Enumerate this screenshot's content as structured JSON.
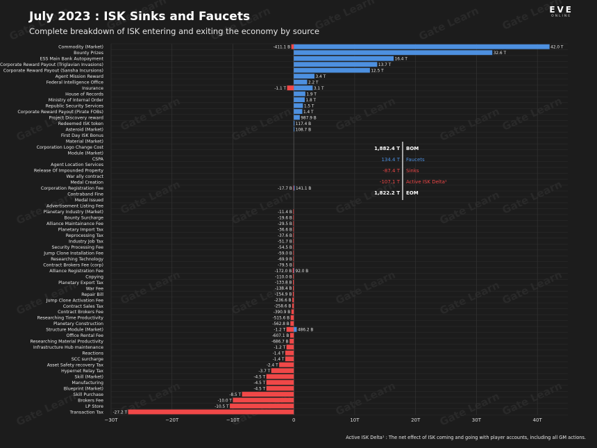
{
  "header": {
    "title": "July 2023 : ISK Sinks and Faucets",
    "subtitle": "Complete breakdown of ISK entering and exiting the economy by source",
    "brand": "EVE",
    "brand_sub": "ONLINE"
  },
  "watermark": "Gate Learn",
  "footnote": "Active ISK Delta¹ : The net effect of ISK coming and going with player accounts, including all GM actions.",
  "colors": {
    "faucet": "#4d90e0",
    "sink": "#f04848",
    "background": "#1c1c1c",
    "grid": "#2b2b2b"
  },
  "summary": [
    {
      "value": "1,882.4 T",
      "label": "BOM",
      "color": "#ffffff",
      "bold": true
    },
    {
      "value": "134.4 T",
      "label": "Faucets",
      "color": "#4d90e0",
      "bold": false
    },
    {
      "value": "-87.4 T",
      "label": "Sinks",
      "color": "#f04848",
      "bold": false
    },
    {
      "value": "-107.1 T",
      "label": "Active ISK Delta¹",
      "color": "#f04848",
      "bold": false
    },
    {
      "value": "1,822.2 T",
      "label": "EOM",
      "color": "#ffffff",
      "bold": true
    }
  ],
  "chart_data": {
    "type": "bar",
    "orientation": "horizontal",
    "xlim": [
      -30,
      45
    ],
    "xticks": [
      -30,
      -20,
      -10,
      0,
      10,
      20,
      30,
      40
    ],
    "xtick_labels": [
      "−30T",
      "−20T",
      "−10T",
      "0",
      "10T",
      "20T",
      "30T",
      "40T"
    ],
    "grid": true,
    "categories": [
      {
        "name": "Commodity (Market)",
        "faucet": 42.0,
        "faucet_label": "42.0 T",
        "sink": -0.4111,
        "sink_label": "-411.1 B"
      },
      {
        "name": "Bounty Prizes",
        "faucet": 32.6,
        "faucet_label": "32.6 T"
      },
      {
        "name": "ESS Main Bank Autopayment",
        "faucet": 16.4,
        "faucet_label": "16.4 T"
      },
      {
        "name": "Corporate Reward Payout (Triglavian Invasions)",
        "faucet": 13.7,
        "faucet_label": "13.7 T"
      },
      {
        "name": "Corporate Reward Payout (Sansha Incursions)",
        "faucet": 12.5,
        "faucet_label": "12.5 T"
      },
      {
        "name": "Agent Mission Reward",
        "faucet": 3.4,
        "faucet_label": "3.4 T"
      },
      {
        "name": "Federal Intelligence Office",
        "faucet": 2.2,
        "faucet_label": "2.2 T"
      },
      {
        "name": "Insurance",
        "faucet": 3.1,
        "faucet_label": "3.1 T",
        "sink": -1.1,
        "sink_label": "-1.1 T"
      },
      {
        "name": "House of Records",
        "faucet": 1.9,
        "faucet_label": "1.9 T"
      },
      {
        "name": "Ministry of Internal Order",
        "faucet": 1.8,
        "faucet_label": "1.8 T"
      },
      {
        "name": "Republic Security Services",
        "faucet": 1.5,
        "faucet_label": "1.5 T"
      },
      {
        "name": "Corporate Reward Payout (Pirate FOBs)",
        "faucet": 1.4,
        "faucet_label": "1.4 T"
      },
      {
        "name": "Project Discovery reward",
        "faucet": 0.9879,
        "faucet_label": "987.9 B"
      },
      {
        "name": "Redeemed ISK token",
        "faucet": 0.1174,
        "faucet_label": "117.4 B"
      },
      {
        "name": "Asteroid (Market)",
        "faucet": 0.1087,
        "faucet_label": "108.7 B"
      },
      {
        "name": "First Day ISK Bonus"
      },
      {
        "name": "Material (Market)"
      },
      {
        "name": "Corporation Logo Change Cost"
      },
      {
        "name": "Module (Market)"
      },
      {
        "name": "CSPA"
      },
      {
        "name": "Agent Location Services"
      },
      {
        "name": "Release Of Impounded Property"
      },
      {
        "name": "War ally contract"
      },
      {
        "name": "Medal Creation"
      },
      {
        "name": "Corporation Registration Fee",
        "faucet": 0.1411,
        "faucet_label": "141.1 B",
        "sink": -0.0177,
        "sink_label": "-17.7 B"
      },
      {
        "name": "Contraband Fine"
      },
      {
        "name": "Medal Issued"
      },
      {
        "name": "Advertisement Listing Fee"
      },
      {
        "name": "Planetary Industry (Market)",
        "sink": -0.0114,
        "sink_label": "-11.4 B"
      },
      {
        "name": "Bounty Surcharge",
        "sink": -0.0196,
        "sink_label": "-19.6 B"
      },
      {
        "name": "Alliance Maintainance Fee",
        "sink": -0.0295,
        "sink_label": "-29.5 B"
      },
      {
        "name": "Planetary Import Tax",
        "sink": -0.0366,
        "sink_label": "-36.6 B"
      },
      {
        "name": "Reprocessing Tax",
        "sink": -0.0376,
        "sink_label": "-37.6 B"
      },
      {
        "name": "Industry Job Tax",
        "sink": -0.0517,
        "sink_label": "-51.7 B"
      },
      {
        "name": "Security Processing Fee",
        "sink": -0.0545,
        "sink_label": "-54.5 B"
      },
      {
        "name": "Jump Clone Installation Fee",
        "sink": -0.059,
        "sink_label": "-59.0 B"
      },
      {
        "name": "Researching Technology",
        "sink": -0.0699,
        "sink_label": "-69.9 B"
      },
      {
        "name": "Contract Brokers Fee (corp)",
        "sink": -0.0795,
        "sink_label": "-79.5 B"
      },
      {
        "name": "Alliance Registration Fee",
        "faucet": 0.092,
        "faucet_label": "92.0 B",
        "sink": -0.172,
        "sink_label": "-172.0 B"
      },
      {
        "name": "Copying",
        "sink": -0.11,
        "sink_label": "-110.0 B"
      },
      {
        "name": "Planetary Export Tax",
        "sink": -0.1338,
        "sink_label": "-133.8 B"
      },
      {
        "name": "War Fee",
        "sink": -0.1384,
        "sink_label": "-138.4 B"
      },
      {
        "name": "Repair Bill",
        "sink": -0.1549,
        "sink_label": "-154.9 B"
      },
      {
        "name": "Jump Clone Activation Fee",
        "sink": -0.2366,
        "sink_label": "-236.6 B"
      },
      {
        "name": "Contract Sales Tax",
        "sink": -0.2586,
        "sink_label": "-258.6 B"
      },
      {
        "name": "Contract Brokers Fee",
        "sink": -0.3909,
        "sink_label": "-390.9 B"
      },
      {
        "name": "Researching Time Productivity",
        "sink": -0.5156,
        "sink_label": "-515.6 B"
      },
      {
        "name": "Planetary Construction",
        "sink": -0.5628,
        "sink_label": "-562.8 B"
      },
      {
        "name": "Structure Module (Market)",
        "faucet": 0.4862,
        "faucet_label": "486.2 B",
        "sink": -1.2,
        "sink_label": "-1.2 T"
      },
      {
        "name": "Office Rental Fee",
        "sink": -0.6071,
        "sink_label": "-607.1 B"
      },
      {
        "name": "Researching Material Productivity",
        "sink": -0.6867,
        "sink_label": "-686.7 B"
      },
      {
        "name": "Infrastructure Hub maintenance",
        "sink": -1.2,
        "sink_label": "-1.2 T"
      },
      {
        "name": "Reactions",
        "sink": -1.4,
        "sink_label": "-1.4 T"
      },
      {
        "name": "SCC surcharge",
        "sink": -1.4,
        "sink_label": "-1.4 T"
      },
      {
        "name": "Asset Safety recovery Tax",
        "sink": -2.4,
        "sink_label": "-2.4 T"
      },
      {
        "name": "Hypernet Relay Tax",
        "sink": -3.7,
        "sink_label": "-3.7 T"
      },
      {
        "name": "Skill (Market)",
        "sink": -4.5,
        "sink_label": "-4.5 T"
      },
      {
        "name": "Manufacturing",
        "sink": -4.5,
        "sink_label": "-4.5 T"
      },
      {
        "name": "Blueprint (Market)",
        "sink": -4.5,
        "sink_label": "-4.5 T"
      },
      {
        "name": "Skill Purchase",
        "sink": -8.5,
        "sink_label": "-8.5 T"
      },
      {
        "name": "Brokers Fee",
        "sink": -10.0,
        "sink_label": "-10.0 T"
      },
      {
        "name": "LP Store",
        "sink": -10.5,
        "sink_label": "-10.5 T"
      },
      {
        "name": "Transaction Tax",
        "sink": -27.2,
        "sink_label": "-27.2 T"
      }
    ]
  }
}
